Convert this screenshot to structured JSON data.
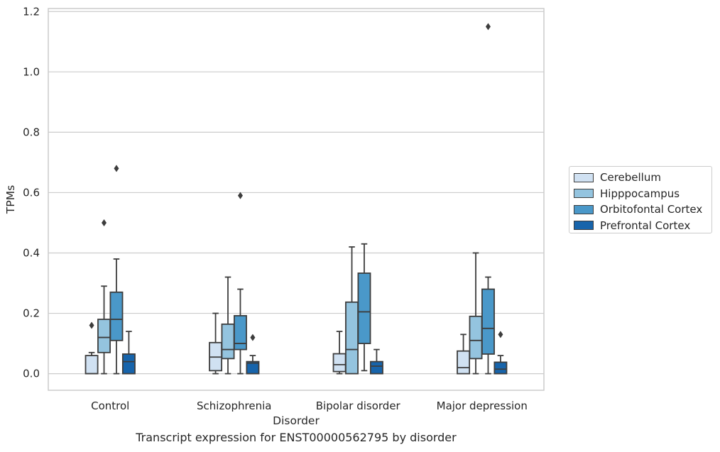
{
  "caption": "Transcript expression for ENST00000562795 by disorder",
  "chart_data": {
    "type": "box",
    "xlabel": "Disorder",
    "ylabel": "TPMs",
    "categories": [
      "Control",
      "Schizophrenia",
      "Bipolar disorder",
      "Major depression"
    ],
    "ylim": [
      -0.055,
      1.21
    ],
    "yticks": [
      "0.0",
      "0.2",
      "0.4",
      "0.6",
      "0.8",
      "1.0",
      "1.2"
    ],
    "grid": true,
    "legend_position": "right",
    "series": [
      {
        "name": "Cerebellum",
        "color": "#d0e1f2",
        "boxes": [
          {
            "min": 0.0,
            "q1": 0.0,
            "median": 0.0,
            "q3": 0.06,
            "max": 0.07,
            "outliers": [
              0.16
            ]
          },
          {
            "min": 0.0,
            "q1": 0.01,
            "median": 0.055,
            "q3": 0.103,
            "max": 0.2,
            "outliers": []
          },
          {
            "min": 0.0,
            "q1": 0.007,
            "median": 0.03,
            "q3": 0.066,
            "max": 0.14,
            "outliers": []
          },
          {
            "min": 0.0,
            "q1": 0.0,
            "median": 0.02,
            "q3": 0.075,
            "max": 0.13,
            "outliers": []
          }
        ]
      },
      {
        "name": "Hipppocampus",
        "color": "#94c4df",
        "boxes": [
          {
            "min": 0.0,
            "q1": 0.07,
            "median": 0.12,
            "q3": 0.18,
            "max": 0.29,
            "outliers": [
              0.5
            ]
          },
          {
            "min": 0.0,
            "q1": 0.05,
            "median": 0.08,
            "q3": 0.164,
            "max": 0.32,
            "outliers": []
          },
          {
            "min": 0.0,
            "q1": 0.0,
            "median": 0.08,
            "q3": 0.237,
            "max": 0.42,
            "outliers": []
          },
          {
            "min": 0.0,
            "q1": 0.05,
            "median": 0.11,
            "q3": 0.19,
            "max": 0.4,
            "outliers": []
          }
        ]
      },
      {
        "name": "Orbitofontal Cortex",
        "color": "#4a98c9",
        "boxes": [
          {
            "min": 0.0,
            "q1": 0.11,
            "median": 0.18,
            "q3": 0.27,
            "max": 0.38,
            "outliers": [
              0.68
            ]
          },
          {
            "min": 0.0,
            "q1": 0.08,
            "median": 0.1,
            "q3": 0.192,
            "max": 0.28,
            "outliers": [
              0.59
            ]
          },
          {
            "min": 0.01,
            "q1": 0.1,
            "median": 0.205,
            "q3": 0.333,
            "max": 0.43,
            "outliers": []
          },
          {
            "min": 0.0,
            "q1": 0.065,
            "median": 0.15,
            "q3": 0.28,
            "max": 0.32,
            "outliers": [
              1.15
            ]
          }
        ]
      },
      {
        "name": "Prefrontal Cortex",
        "color": "#1764ab",
        "boxes": [
          {
            "min": 0.0,
            "q1": 0.0,
            "median": 0.04,
            "q3": 0.065,
            "max": 0.14,
            "outliers": []
          },
          {
            "min": 0.0,
            "q1": 0.0,
            "median": 0.035,
            "q3": 0.04,
            "max": 0.06,
            "outliers": [
              0.12
            ]
          },
          {
            "min": 0.0,
            "q1": 0.0,
            "median": 0.025,
            "q3": 0.04,
            "max": 0.08,
            "outliers": []
          },
          {
            "min": 0.0,
            "q1": 0.0,
            "median": 0.015,
            "q3": 0.038,
            "max": 0.06,
            "outliers": [
              0.13
            ]
          }
        ]
      }
    ]
  }
}
